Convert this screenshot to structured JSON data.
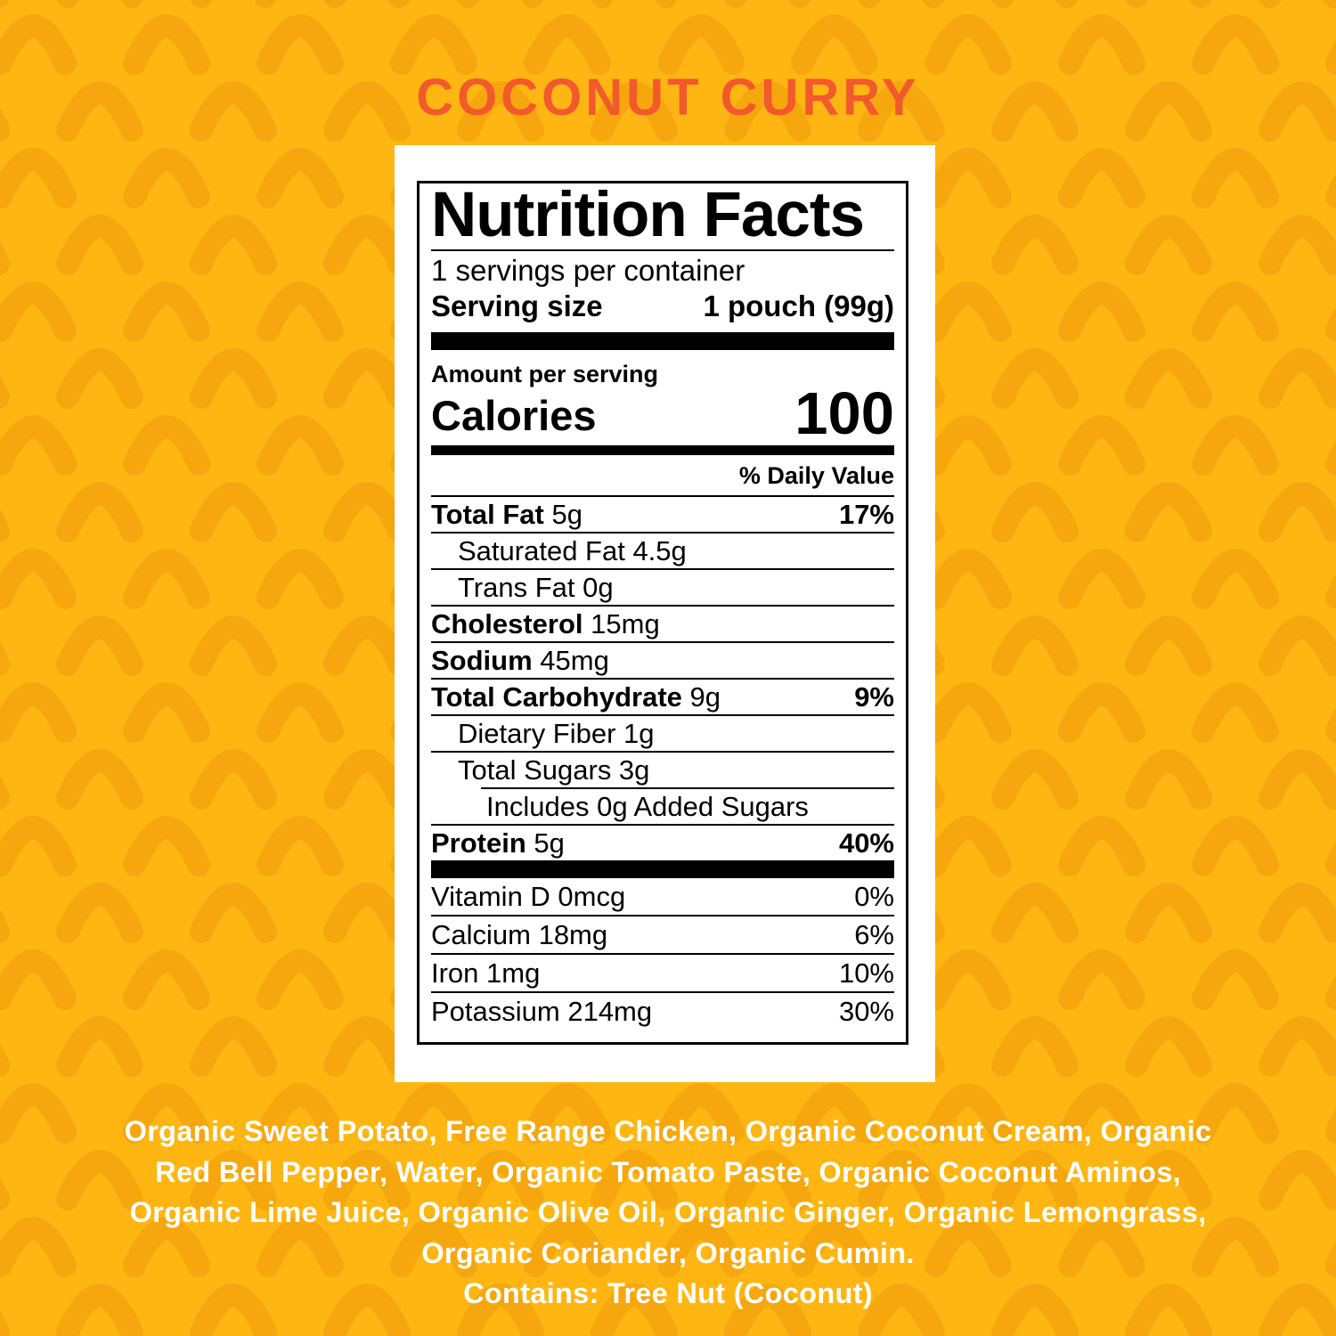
{
  "title": "COCONUT CURRY",
  "colors": {
    "background": "#FFB613",
    "pattern_shape": "#F5A70D",
    "title_text": "#F2592B",
    "label_background": "#FFFFFF",
    "label_text": "#000000",
    "ingredients_text": "#FFFFFF"
  },
  "label": {
    "heading": "Nutrition Facts",
    "servings_per_container": "1 servings per container",
    "serving_size_label": "Serving size",
    "serving_size_value": "1 pouch (99g)",
    "amount_per_serving": "Amount per serving",
    "calories_label": "Calories",
    "calories_value": "100",
    "daily_value_header": "% Daily Value",
    "rows": [
      {
        "name": "Total Fat",
        "amount": "5g",
        "dv": "17%",
        "bold": true,
        "indent": 0
      },
      {
        "name": "Saturated Fat",
        "amount": "4.5g",
        "dv": "",
        "bold": false,
        "indent": 1
      },
      {
        "name": "Trans Fat",
        "amount": "0g",
        "dv": "",
        "bold": false,
        "indent": 1
      },
      {
        "name": "Cholesterol",
        "amount": "15mg",
        "dv": "",
        "bold": true,
        "indent": 0
      },
      {
        "name": "Sodium",
        "amount": "45mg",
        "dv": "",
        "bold": true,
        "indent": 0
      },
      {
        "name": "Total Carbohydrate",
        "amount": "9g",
        "dv": "9%",
        "bold": true,
        "indent": 0
      },
      {
        "name": "Dietary Fiber",
        "amount": "1g",
        "dv": "",
        "bold": false,
        "indent": 1
      },
      {
        "name": "Total Sugars",
        "amount": "3g",
        "dv": "",
        "bold": false,
        "indent": 1
      },
      {
        "name": "Includes 0g Added Sugars",
        "amount": "",
        "dv": "",
        "bold": false,
        "indent": 2,
        "indent_line": true
      },
      {
        "name": "Protein",
        "amount": "5g",
        "dv": "40%",
        "bold": true,
        "indent": 0
      }
    ],
    "micronutrients": [
      {
        "name": "Vitamin D",
        "amount": "0mcg",
        "dv": "0%"
      },
      {
        "name": "Calcium",
        "amount": "18mg",
        "dv": "6%"
      },
      {
        "name": "Iron",
        "amount": "1mg",
        "dv": "10%"
      },
      {
        "name": "Potassium",
        "amount": "214mg",
        "dv": "30%"
      }
    ]
  },
  "ingredients": {
    "lines": [
      "Organic Sweet Potato, Free Range Chicken, Organic Coconut Cream, Organic",
      "Red Bell Pepper, Water, Organic Tomato Paste, Organic Coconut Aminos,",
      "Organic Lime Juice, Organic Olive Oil, Organic Ginger, Organic Lemongrass,",
      "Organic Coriander, Organic Cumin.",
      "Contains: Tree Nut (Coconut)"
    ]
  }
}
